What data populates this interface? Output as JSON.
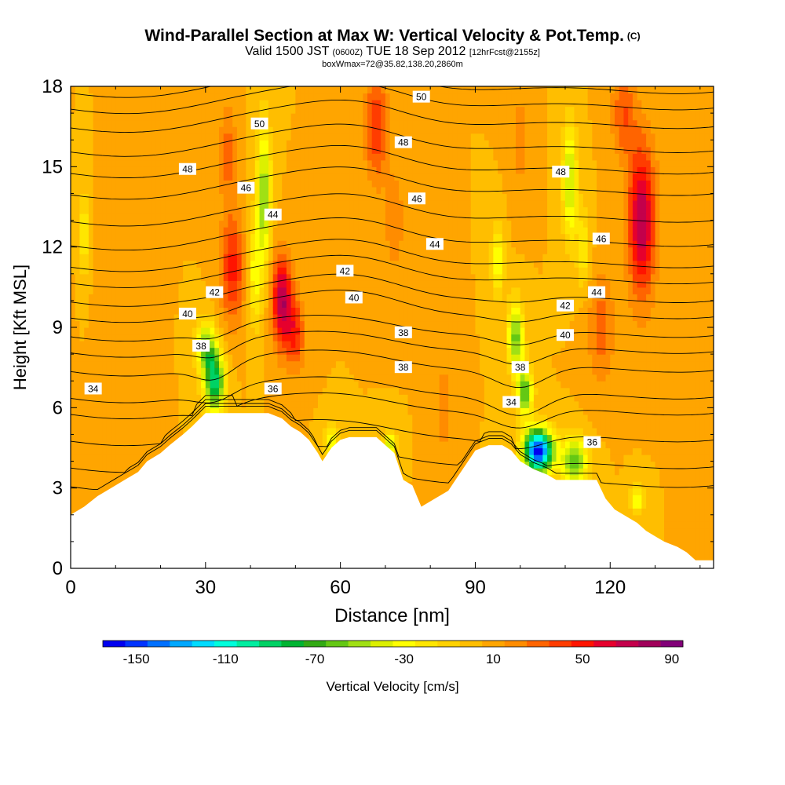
{
  "header": {
    "title": "Wind-Parallel Section at Max W: Vertical Velocity & Pot.Temp.",
    "copyright": "(C)",
    "valid_prefix": "Valid 1500 JST",
    "valid_utc": "(0600Z)",
    "valid_date": "TUE 18 Sep 2012",
    "forecast": "[12hrFcst@2155z]",
    "box_info": "boxWmax=72@35.82,138.20,2860m"
  },
  "chart_data": {
    "type": "heatmap",
    "xlabel": "Distance [nm]",
    "ylabel": "Height [Kft MSL]",
    "xlim": [
      0,
      143
    ],
    "ylim": [
      0,
      18
    ],
    "xticks": [
      0,
      30,
      60,
      90,
      120
    ],
    "yticks": [
      0,
      3,
      6,
      9,
      12,
      15,
      18
    ],
    "terrain_kft": [
      [
        0,
        2.0
      ],
      [
        3,
        2.3
      ],
      [
        6,
        2.7
      ],
      [
        9,
        3.0
      ],
      [
        12,
        3.3
      ],
      [
        15,
        3.6
      ],
      [
        17,
        4.0
      ],
      [
        20,
        4.3
      ],
      [
        22,
        4.6
      ],
      [
        25,
        5.0
      ],
      [
        27,
        5.3
      ],
      [
        30,
        5.8
      ],
      [
        44,
        5.8
      ],
      [
        47,
        5.6
      ],
      [
        49,
        5.3
      ],
      [
        51,
        5.1
      ],
      [
        53,
        4.8
      ],
      [
        55,
        4.3
      ],
      [
        56,
        4.0
      ],
      [
        58,
        4.5
      ],
      [
        60,
        4.8
      ],
      [
        62,
        4.9
      ],
      [
        65,
        4.9
      ],
      [
        68,
        4.9
      ],
      [
        70,
        4.6
      ],
      [
        72,
        4.3
      ],
      [
        74,
        3.3
      ],
      [
        76,
        3.1
      ],
      [
        78,
        2.3
      ],
      [
        81,
        2.6
      ],
      [
        84,
        2.9
      ],
      [
        86,
        3.4
      ],
      [
        88,
        3.9
      ],
      [
        90,
        4.4
      ],
      [
        93,
        4.6
      ],
      [
        96,
        4.6
      ],
      [
        98,
        4.4
      ],
      [
        100,
        4.0
      ],
      [
        103,
        3.7
      ],
      [
        106,
        3.5
      ],
      [
        108,
        3.3
      ],
      [
        117,
        3.3
      ],
      [
        119,
        2.6
      ],
      [
        121,
        2.2
      ],
      [
        124,
        1.9
      ],
      [
        126,
        1.7
      ],
      [
        128,
        1.4
      ],
      [
        130,
        1.2
      ],
      [
        132,
        1.0
      ],
      [
        135,
        0.8
      ],
      [
        137,
        0.6
      ],
      [
        139,
        0.3
      ],
      [
        143,
        0.3
      ]
    ],
    "w_base_cms": 10,
    "w_cells": [
      {
        "x": 35,
        "y": 15.5,
        "sx": 2.0,
        "sy": 1.8,
        "w": 25
      },
      {
        "x": 36,
        "y": 11.2,
        "sx": 2.6,
        "sy": 2.0,
        "w": 45
      },
      {
        "x": 47,
        "y": 10.0,
        "sx": 2.2,
        "sy": 1.7,
        "w": 70
      },
      {
        "x": 50,
        "y": 8.8,
        "sx": 2.0,
        "sy": 1.3,
        "w": 40
      },
      {
        "x": 68,
        "y": 16.5,
        "sx": 2.6,
        "sy": 2.0,
        "w": 40
      },
      {
        "x": 72,
        "y": 13.0,
        "sx": 2.0,
        "sy": 1.8,
        "w": 20
      },
      {
        "x": 127,
        "y": 13.0,
        "sx": 3.0,
        "sy": 2.8,
        "w": 70
      },
      {
        "x": 123,
        "y": 17.0,
        "sx": 2.6,
        "sy": 1.6,
        "w": 30
      },
      {
        "x": 100,
        "y": 16.0,
        "sx": 2.0,
        "sy": 2.0,
        "w": 15
      },
      {
        "x": 118,
        "y": 9.0,
        "sx": 3.0,
        "sy": 2.0,
        "w": 25
      },
      {
        "x": 83,
        "y": 6.0,
        "sx": 2.2,
        "sy": 2.0,
        "w": 15
      },
      {
        "x": 12,
        "y": 8.0,
        "sx": 4.0,
        "sy": 3.0,
        "w": 10
      },
      {
        "x": 32,
        "y": 7.0,
        "sx": 2.3,
        "sy": 1.2,
        "w": -95
      },
      {
        "x": 30,
        "y": 8.3,
        "sx": 2.2,
        "sy": 1.0,
        "w": -55
      },
      {
        "x": 43,
        "y": 14.0,
        "sx": 1.6,
        "sy": 2.6,
        "w": -60
      },
      {
        "x": 41,
        "y": 11.0,
        "sx": 1.6,
        "sy": 2.0,
        "w": -35
      },
      {
        "x": 99,
        "y": 8.7,
        "sx": 1.8,
        "sy": 1.3,
        "w": -65
      },
      {
        "x": 95,
        "y": 11.5,
        "sx": 1.4,
        "sy": 1.3,
        "w": -40
      },
      {
        "x": 101,
        "y": 6.6,
        "sx": 1.8,
        "sy": 0.9,
        "w": -70
      },
      {
        "x": 104,
        "y": 4.4,
        "sx": 3.2,
        "sy": 0.8,
        "w": -165
      },
      {
        "x": 112,
        "y": 4.0,
        "sx": 3.0,
        "sy": 0.9,
        "w": -70
      },
      {
        "x": 111,
        "y": 14.5,
        "sx": 1.6,
        "sy": 2.2,
        "w": -55
      },
      {
        "x": 114,
        "y": 12.0,
        "sx": 1.5,
        "sy": 1.5,
        "w": -30
      },
      {
        "x": 58,
        "y": 4.8,
        "sx": 1.6,
        "sy": 0.6,
        "w": -40
      },
      {
        "x": 71,
        "y": 4.6,
        "sx": 1.5,
        "sy": 0.6,
        "w": -45
      },
      {
        "x": 3,
        "y": 12.5,
        "sx": 0.8,
        "sy": 1.5,
        "w": -40
      },
      {
        "x": 126,
        "y": 2.6,
        "sx": 1.5,
        "sy": 0.6,
        "w": -40
      }
    ],
    "theta_levels": [
      {
        "label": "34",
        "show": true,
        "a": 34.0,
        "b": 34.0,
        "c": 34.0,
        "d": 3.3
      },
      {
        "label": "",
        "show": false,
        "a": 34.5,
        "b": 35.0,
        "c": 34.5,
        "d": 4.0
      },
      {
        "label": "",
        "show": false,
        "a": 35.0,
        "b": 35.5,
        "c": 35.5,
        "d": 5.0
      },
      {
        "label": "36",
        "show": true,
        "a": 35.3,
        "b": 36.5,
        "c": 36.2,
        "d": 6.0
      },
      {
        "label": "",
        "show": false,
        "a": 35.8,
        "b": 37.0,
        "c": 36.8,
        "d": 6.6
      },
      {
        "label": "38",
        "show": true,
        "a": 36.5,
        "b": 38.0,
        "c": 38.0,
        "d": 7.6
      },
      {
        "label": "",
        "show": false,
        "a": 37.5,
        "b": 39.0,
        "c": 38.8,
        "d": 8.3
      },
      {
        "label": "40",
        "show": true,
        "a": 38.0,
        "b": 40.0,
        "c": 40.0,
        "d": 8.9
      },
      {
        "label": "",
        "show": false,
        "a": 38.5,
        "b": 40.5,
        "c": 40.5,
        "d": 9.6
      },
      {
        "label": "42",
        "show": true,
        "a": 39.5,
        "b": 41.5,
        "c": 42.0,
        "d": 10.2
      },
      {
        "label": "",
        "show": false,
        "a": 40.0,
        "b": 42.5,
        "c": 42.5,
        "d": 10.9
      },
      {
        "label": "44",
        "show": true,
        "a": 41.0,
        "b": 44.0,
        "c": 44.0,
        "d": 11.5
      },
      {
        "label": "",
        "show": false,
        "a": 42.0,
        "b": 45.0,
        "c": 45.0,
        "d": 12.3
      },
      {
        "label": "46",
        "show": true,
        "a": 43.5,
        "b": 46.0,
        "c": 46.0,
        "d": 13.2
      },
      {
        "label": "",
        "show": false,
        "a": 44.5,
        "b": 47.0,
        "c": 47.0,
        "d": 14.2
      },
      {
        "label": "48",
        "show": true,
        "a": 45.0,
        "b": 48.0,
        "c": 48.0,
        "d": 15.0
      },
      {
        "label": "",
        "show": false,
        "a": 46.0,
        "b": 49.0,
        "c": 49.0,
        "d": 15.8
      },
      {
        "label": "50",
        "show": true,
        "a": 47.5,
        "b": 50.0,
        "c": 50.0,
        "d": 16.7
      },
      {
        "label": "",
        "show": false,
        "a": 48.5,
        "b": 51.0,
        "c": 51.0,
        "d": 17.4
      },
      {
        "label": "",
        "show": false,
        "a": 49.5,
        "b": 52.0,
        "c": 52.0,
        "d": 18.0
      }
    ],
    "theta_labels": [
      {
        "text": "34",
        "x": 5,
        "y": 6.7
      },
      {
        "text": "34",
        "x": 98,
        "y": 6.2
      },
      {
        "text": "36",
        "x": 45,
        "y": 6.7
      },
      {
        "text": "36",
        "x": 116,
        "y": 4.7
      },
      {
        "text": "38",
        "x": 29,
        "y": 8.3
      },
      {
        "text": "38",
        "x": 74,
        "y": 7.5
      },
      {
        "text": "38",
        "x": 100,
        "y": 7.5
      },
      {
        "text": "38",
        "x": 74,
        "y": 8.8
      },
      {
        "text": "40",
        "x": 26,
        "y": 9.5
      },
      {
        "text": "40",
        "x": 63,
        "y": 10.1
      },
      {
        "text": "40",
        "x": 110,
        "y": 8.7
      },
      {
        "text": "42",
        "x": 32,
        "y": 10.3
      },
      {
        "text": "42",
        "x": 61,
        "y": 11.1
      },
      {
        "text": "42",
        "x": 110,
        "y": 9.8
      },
      {
        "text": "44",
        "x": 45,
        "y": 13.2
      },
      {
        "text": "44",
        "x": 81,
        "y": 12.1
      },
      {
        "text": "44",
        "x": 117,
        "y": 10.3
      },
      {
        "text": "46",
        "x": 39,
        "y": 14.2
      },
      {
        "text": "46",
        "x": 77,
        "y": 13.8
      },
      {
        "text": "46",
        "x": 118,
        "y": 12.3
      },
      {
        "text": "48",
        "x": 26,
        "y": 14.9
      },
      {
        "text": "48",
        "x": 74,
        "y": 15.9
      },
      {
        "text": "48",
        "x": 109,
        "y": 14.8
      },
      {
        "text": "50",
        "x": 42,
        "y": 16.6
      },
      {
        "text": "50",
        "x": 78,
        "y": 17.6
      }
    ],
    "colorbar": {
      "label": "Vertical Velocity [cm/s]",
      "tick_labels": [
        "-150",
        "-110",
        "-70",
        "-30",
        "10",
        "50",
        "90"
      ],
      "bins": [
        -160,
        -150,
        -140,
        -130,
        -120,
        -110,
        -100,
        -90,
        -80,
        -70,
        -60,
        -50,
        -40,
        -30,
        -20,
        -10,
        0,
        10,
        20,
        30,
        40,
        50,
        60,
        70,
        80,
        90,
        100
      ],
      "colors": [
        "#0000f0",
        "#0033ff",
        "#0070ff",
        "#00a8ff",
        "#00dcff",
        "#00ffdc",
        "#00eea0",
        "#00d264",
        "#00b432",
        "#32aa14",
        "#64c814",
        "#a0e014",
        "#dcf000",
        "#ffff00",
        "#ffe600",
        "#ffd200",
        "#ffbe00",
        "#ffa500",
        "#ff8c00",
        "#ff6400",
        "#ff3c00",
        "#ff1400",
        "#e6002d",
        "#c3004b",
        "#a0005a",
        "#820078"
      ]
    }
  }
}
